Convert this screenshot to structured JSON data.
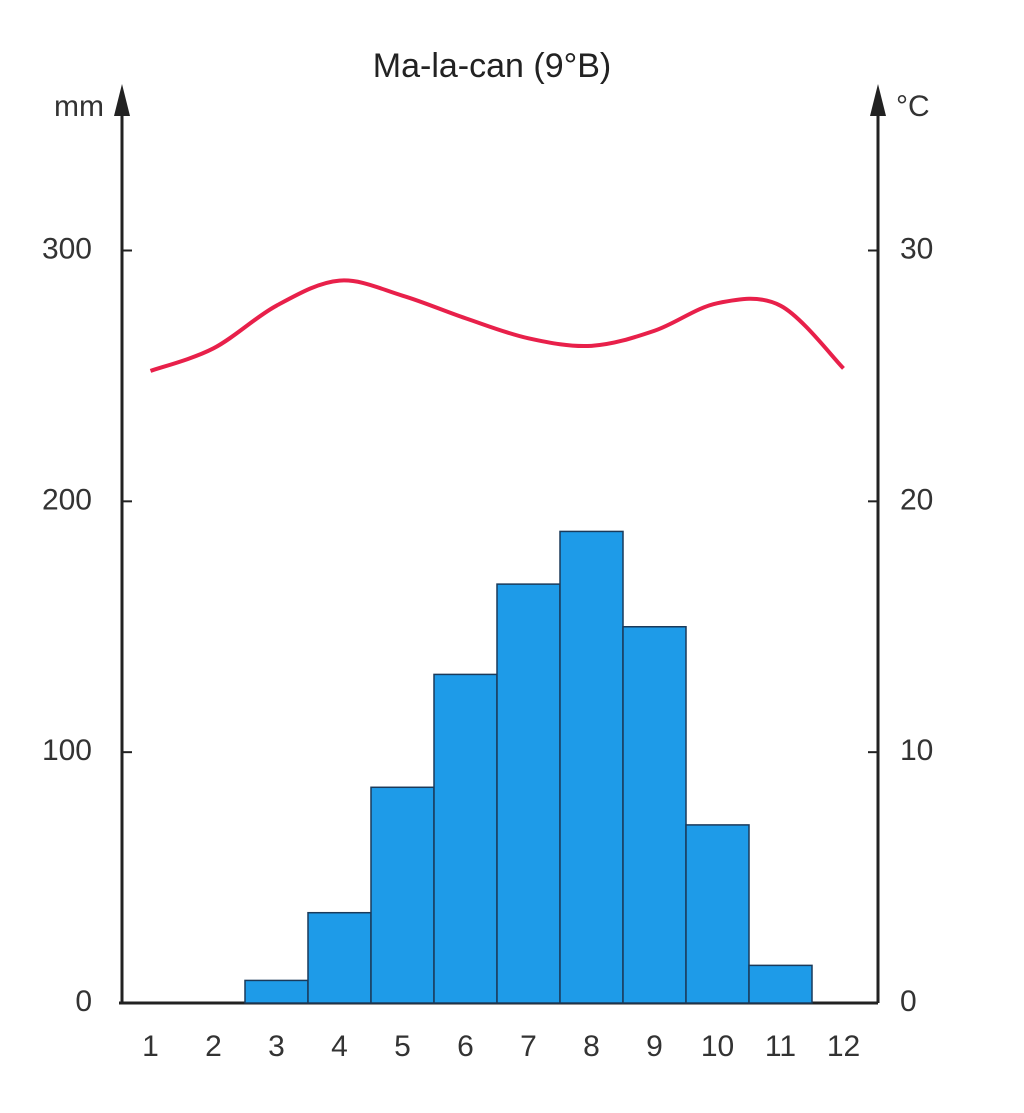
{
  "chart_data": {
    "type": "bar",
    "title": "Ma-la-can (9°B)",
    "y_label": "mm",
    "y2_label": "°C",
    "categories": [
      "1",
      "2",
      "3",
      "4",
      "5",
      "6",
      "7",
      "8",
      "9",
      "10",
      "11",
      "12"
    ],
    "series": [
      {
        "type": "bar",
        "color": "#1e9be8",
        "values": [
          0,
          0,
          9,
          36,
          86,
          131,
          167,
          188,
          150,
          71,
          15,
          0
        ]
      },
      {
        "type": "line",
        "axis": "y2",
        "color": "#e8204a",
        "values": [
          25.2,
          26.1,
          27.8,
          28.8,
          28.2,
          27.3,
          26.5,
          26.2,
          26.8,
          27.9,
          27.8,
          25.3
        ]
      }
    ],
    "ylim": [
      0,
      360
    ],
    "yticks": [
      0,
      100,
      200,
      300
    ],
    "y2lim": [
      0,
      36
    ],
    "y2ticks": [
      0,
      10,
      20,
      30
    ]
  }
}
